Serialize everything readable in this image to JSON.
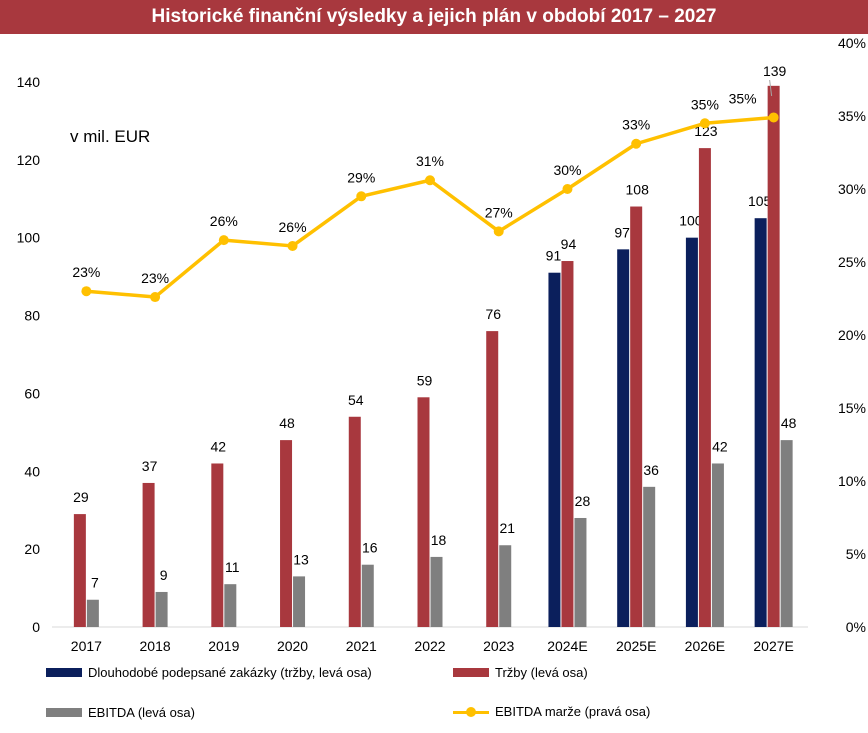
{
  "title": "Historické finanční výsledky a jejich plán v období 2017 – 2027",
  "unit_label": "v mil. EUR",
  "colors": {
    "title_bg": "#a8383e",
    "contracts": "#0b1f5c",
    "revenue": "#a8383e",
    "ebitda": "#7f7f7f",
    "margin": "#ffc000"
  },
  "chart_data": {
    "type": "bar",
    "categories": [
      "2017",
      "2018",
      "2019",
      "2020",
      "2021",
      "2022",
      "2023",
      "2024E",
      "2025E",
      "2026E",
      "2027E"
    ],
    "series": [
      {
        "name": "Dlouhodobé podepsané zakázky (tržby, levá osa)",
        "kind": "bar",
        "axis": "left",
        "values": [
          null,
          null,
          null,
          null,
          null,
          null,
          null,
          91,
          97,
          100,
          105
        ],
        "labels": [
          "",
          "",
          "",
          "",
          "",
          "",
          "",
          "91",
          "97",
          "100",
          "105"
        ]
      },
      {
        "name": "Tržby (levá osa)",
        "kind": "bar",
        "axis": "left",
        "values": [
          29,
          37,
          42,
          48,
          54,
          59,
          76,
          94,
          108,
          123,
          139
        ],
        "labels": [
          "29",
          "37",
          "42",
          "48",
          "54",
          "59",
          "76",
          "94",
          "108",
          "123",
          "139"
        ]
      },
      {
        "name": "EBITDA (levá osa)",
        "kind": "bar",
        "axis": "left",
        "values": [
          7,
          9,
          11,
          13,
          16,
          18,
          21,
          28,
          36,
          42,
          48
        ],
        "labels": [
          "7",
          "9",
          "11",
          "13",
          "16",
          "18",
          "21",
          "28",
          "36",
          "42",
          "48"
        ]
      },
      {
        "name": "EBITDA marže (pravá osa)",
        "kind": "line",
        "axis": "right",
        "values": [
          0.23,
          0.226,
          0.265,
          0.261,
          0.295,
          0.306,
          0.271,
          0.3,
          0.331,
          0.345,
          0.349
        ],
        "labels": [
          "23%",
          "23%",
          "26%",
          "26%",
          "29%",
          "31%",
          "27%",
          "30%",
          "33%",
          "35%",
          "35%"
        ]
      }
    ],
    "ylim": [
      0,
      150
    ],
    "yticks": [
      "0",
      "20",
      "40",
      "60",
      "80",
      "100",
      "120",
      "140"
    ],
    "y2lim": [
      0,
      0.4
    ],
    "y2ticks": [
      "0%",
      "5%",
      "10%",
      "15%",
      "20%",
      "25%",
      "30%",
      "35%",
      "40%"
    ],
    "grid": false,
    "legend_position": "bottom"
  }
}
